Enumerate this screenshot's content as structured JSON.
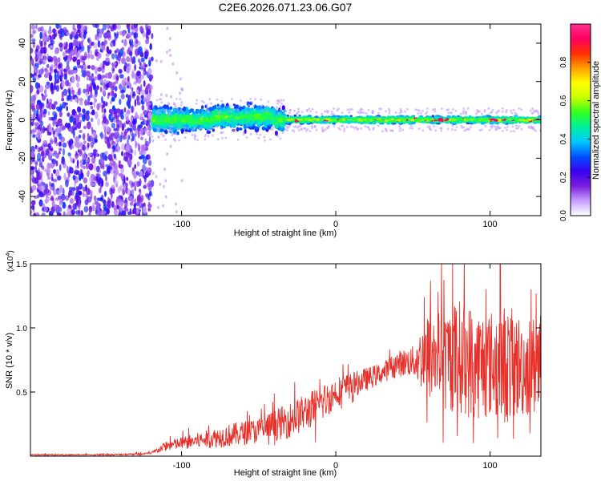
{
  "title": "C2E6.2026.071.23.06.G07",
  "chart_data": [
    {
      "type": "heatmap",
      "xlabel": "Height of straight line (km)",
      "ylabel": "Frequency (Hz)",
      "xlim": [
        -198,
        133
      ],
      "ylim": [
        -50,
        50
      ],
      "xticks": [
        -100,
        0,
        100
      ],
      "xtick_labels": [
        "-100",
        "0",
        "100"
      ],
      "yticks": [
        -40,
        -20,
        0,
        20,
        40
      ],
      "ytick_labels": [
        "-40",
        "-20",
        "0",
        "20",
        "40"
      ],
      "colorbar": {
        "label": "Normalized spectral amplitude",
        "range": [
          0,
          1
        ],
        "ticks": [
          0.0,
          0.2,
          0.4,
          0.6,
          0.8
        ],
        "tick_labels": [
          "0.0",
          "0.2",
          "0.4",
          "0.6",
          "0.8"
        ],
        "colors": [
          "#ffffff",
          "#c8a0ff",
          "#7b1fe0",
          "#3a00f0",
          "#0050ff",
          "#00c8ff",
          "#00f0a0",
          "#30ff20",
          "#c8ff00",
          "#ffff00",
          "#ffa000",
          "#ff3000",
          "#ff0060",
          "#ff3090"
        ]
      },
      "regions": [
        {
          "x_range": [
            -198,
            -119
          ],
          "freq_band": [
            -50,
            50
          ],
          "amplitude": "0.1-0.3",
          "description_key": "noise"
        },
        {
          "x_range": [
            -119,
            -33
          ],
          "center_hz": 0,
          "half_width_hz": 8,
          "amplitude": "0.2-0.5"
        },
        {
          "x_range": [
            -33,
            133
          ],
          "center_hz": 0,
          "half_width_hz": 2.5,
          "amplitude": "0.4-0.9"
        }
      ]
    },
    {
      "type": "line",
      "xlabel": "Height of straight line (km)",
      "ylabel": "SNR (10 * v/v)",
      "y_scale_label": "(x10",
      "y_scale_exponent": "4",
      "y_scale_suffix": ")",
      "xlim": [
        -198,
        133
      ],
      "ylim": [
        0,
        1.5
      ],
      "xticks": [
        -100,
        0,
        100
      ],
      "xtick_labels": [
        "-100",
        "0",
        "100"
      ],
      "yticks": [
        0.5,
        1.0,
        1.5
      ],
      "ytick_labels": [
        "0.5",
        "1.0",
        "1.5"
      ],
      "series": [
        {
          "name": "SNR",
          "color": "#e8302a",
          "envelope": {
            "x": [
              -198,
              -150,
              -120,
              -110,
              -90,
              -70,
              -50,
              -30,
              -10,
              0,
              10,
              30,
              40,
              50,
              60,
              70,
              80,
              90,
              100,
              110,
              120,
              133
            ],
            "mean": [
              0.01,
              0.01,
              0.02,
              0.08,
              0.12,
              0.16,
              0.2,
              0.28,
              0.4,
              0.5,
              0.55,
              0.65,
              0.72,
              0.74,
              0.78,
              0.75,
              0.78,
              0.72,
              0.72,
              0.72,
              0.7,
              0.7
            ],
            "amp": [
              0.005,
              0.005,
              0.01,
              0.04,
              0.06,
              0.09,
              0.1,
              0.14,
              0.15,
              0.12,
              0.1,
              0.08,
              0.1,
              0.12,
              0.35,
              0.4,
              0.45,
              0.45,
              0.42,
              0.48,
              0.4,
              0.4
            ]
          }
        }
      ]
    }
  ]
}
